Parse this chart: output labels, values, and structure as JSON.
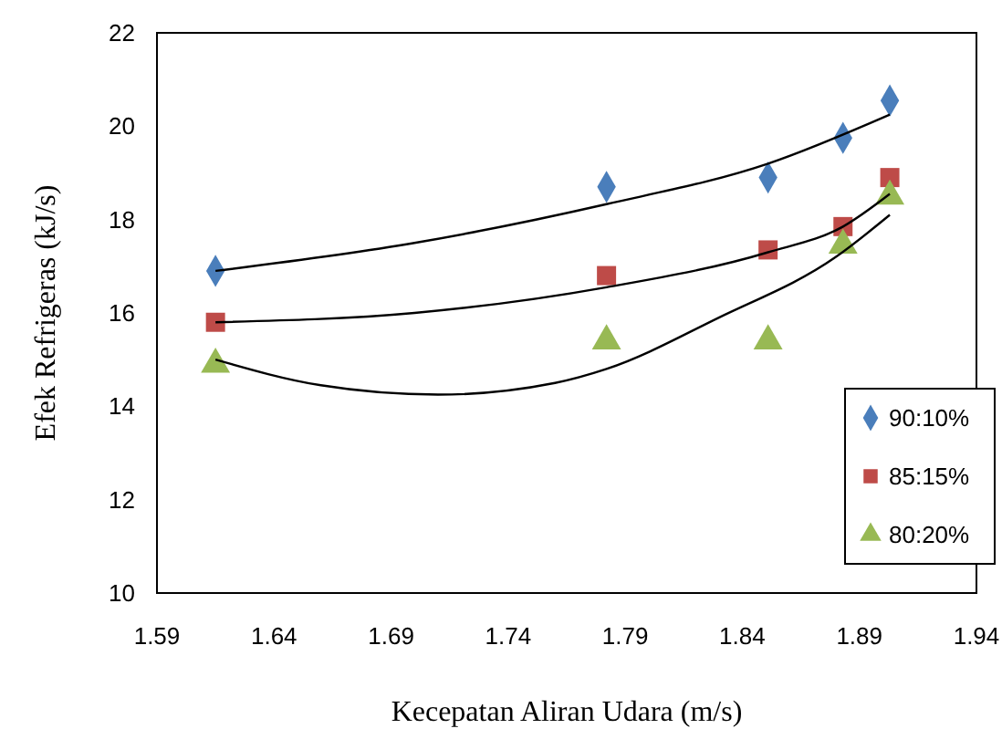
{
  "chart_data": {
    "type": "scatter",
    "xlabel": "Kecepatan Aliran Udara (m/s)",
    "ylabel": "Efek Refrigeras (kJ/s)",
    "xlim": [
      1.59,
      1.94
    ],
    "xticks": [
      1.59,
      1.64,
      1.69,
      1.74,
      1.79,
      1.84,
      1.89,
      1.94
    ],
    "ylim": [
      10,
      22
    ],
    "yticks": [
      10,
      12,
      14,
      16,
      18,
      20,
      22
    ],
    "grid": false,
    "legend": "right",
    "x": [
      1.615,
      1.782,
      1.851,
      1.883,
      1.903
    ],
    "series": [
      {
        "name": "90:10%",
        "color": "#4a7ebb",
        "marker": "diamond",
        "values": [
          16.9,
          18.7,
          18.9,
          19.75,
          20.55
        ]
      },
      {
        "name": "85:15%",
        "color": "#be4b48",
        "marker": "square",
        "values": [
          15.8,
          16.8,
          17.35,
          17.85,
          18.9
        ]
      },
      {
        "name": "80:20%",
        "color": "#98b954",
        "marker": "triangle",
        "values": [
          14.9,
          15.4,
          15.4,
          17.45,
          18.5
        ]
      },
      {
        "type": "line",
        "color": "#000000",
        "marker": "none",
        "x": [
          1.615,
          1.7,
          1.782,
          1.851,
          1.903
        ],
        "values": [
          16.9,
          17.5,
          18.33,
          19.2,
          20.25
        ]
      },
      {
        "type": "line",
        "color": "#000000",
        "marker": "none",
        "x": [
          1.615,
          1.7,
          1.782,
          1.851,
          1.883,
          1.903
        ],
        "values": [
          15.8,
          16.0,
          16.55,
          17.3,
          17.85,
          18.55
        ]
      },
      {
        "type": "line",
        "color": "#000000",
        "marker": "none",
        "x": [
          1.615,
          1.66,
          1.71,
          1.76,
          1.782,
          1.83,
          1.88,
          1.903
        ],
        "values": [
          15.0,
          14.45,
          14.25,
          14.5,
          14.8,
          15.9,
          17.2,
          18.1
        ]
      }
    ]
  }
}
